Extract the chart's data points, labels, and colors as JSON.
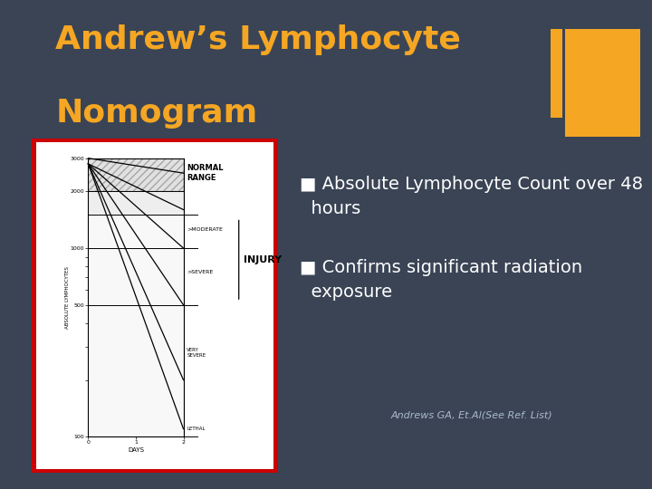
{
  "bg_color": "#3a4455",
  "title_line1": "Andrew’s Lymphocyte",
  "title_line2": "Nomogram",
  "title_color": "#f5a623",
  "title_fontsize": 26,
  "bullet1": "■ Absolute Lymphocyte Count over 48\n  hours",
  "bullet2": "■ Confirms significant radiation\n  exposure",
  "bullet_color": "#ffffff",
  "bullet_fontsize": 14,
  "citation": "Andrews GA, Et.Al(See Ref. List)",
  "citation_color": "#aabbcc",
  "citation_fontsize": 8,
  "orange_color": "#f5a623",
  "image_border_color": "#cc0000",
  "image_bg": "#ffffff",
  "nomogram_ylabel": "ABSOLUTE LYMPHOCYTES",
  "nomogram_xlabel": "DAYS",
  "nomogram_yticks": [
    100,
    500,
    1000,
    2000,
    3000
  ],
  "nomogram_xticks": [
    0,
    1,
    2
  ],
  "normal_range_label": "NORMAL\nRANGE",
  "injury_label": "INJURY",
  "moderate_label": ">MODERATE",
  "severe_label": ">SEVERE",
  "very_severe_label": "VERY\nSEVERE",
  "lethal_label": "LETHAL"
}
